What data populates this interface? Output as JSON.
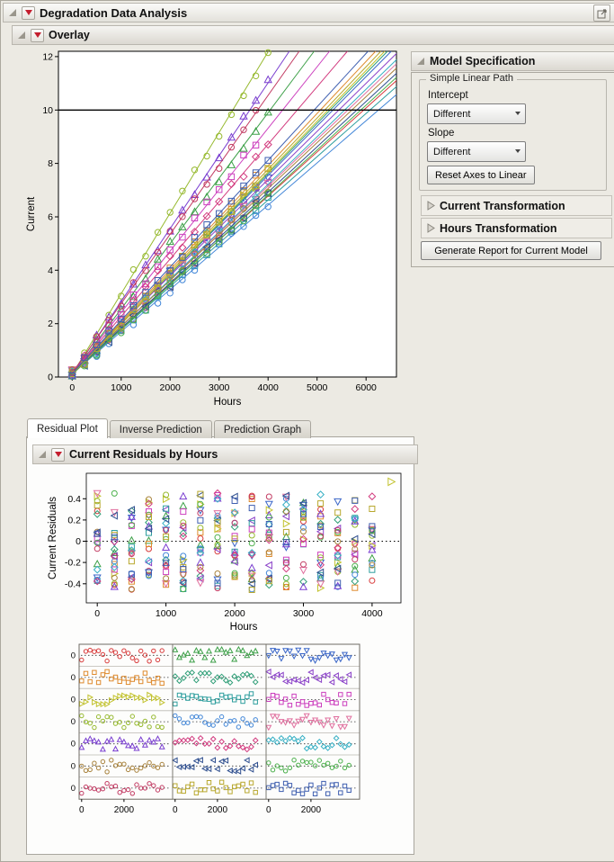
{
  "window": {
    "title": "Degradation Data Analysis"
  },
  "overlay": {
    "title": "Overlay"
  },
  "model_spec": {
    "title": "Model Specification",
    "group_label": "Simple Linear Path",
    "intercept_label": "Intercept",
    "intercept_value": "Different",
    "slope_label": "Slope",
    "slope_value": "Different",
    "reset_axes_button": "Reset Axes to Linear",
    "current_transformation_label": "Current Transformation",
    "hours_transformation_label": "Hours Transformation",
    "generate_report_button": "Generate Report for Current Model"
  },
  "tabs": [
    {
      "label": "Residual Plot",
      "active": true
    },
    {
      "label": "Inverse Prediction",
      "active": false
    },
    {
      "label": "Prediction Graph",
      "active": false
    }
  ],
  "residuals_section": {
    "title": "Current Residuals by Hours"
  },
  "colors": {
    "red_triangle": "#C41E2E",
    "reference_line": "#000000",
    "window_bg": "#ECEAE3"
  },
  "chart_data": [
    {
      "type": "line",
      "title": "Overlay plot of degradation paths",
      "xlabel": "Hours",
      "ylabel": "Current",
      "xlim": [
        -280,
        6620
      ],
      "ylim": [
        0,
        12.2
      ],
      "x_ticks": [
        0,
        1000,
        2000,
        3000,
        4000,
        5000,
        6000
      ],
      "y_ticks": [
        0,
        2,
        4,
        6,
        8,
        10,
        12
      ],
      "reference_line_y": 10,
      "marker_step_hours": 250,
      "series": [
        {
          "color": "#D83A3A",
          "marker": "circle",
          "slope_per_1000h": 1.65,
          "intercept": 0.18,
          "max_hours": 4000
        },
        {
          "color": "#3DA048",
          "marker": "triangle-up",
          "slope_per_1000h": 2.45,
          "intercept": 0.1,
          "max_hours": 4000
        },
        {
          "color": "#3A66C8",
          "marker": "triangle-down",
          "slope_per_1000h": 1.85,
          "intercept": 0.15,
          "max_hours": 4000
        },
        {
          "color": "#DE8A2E",
          "marker": "square",
          "slope_per_1000h": 1.95,
          "intercept": 0.12,
          "max_hours": 4000
        },
        {
          "color": "#2F9E77",
          "marker": "diamond",
          "slope_per_1000h": 1.88,
          "intercept": 0.1,
          "max_hours": 3750
        },
        {
          "color": "#8A41C8",
          "marker": "triangle-left",
          "slope_per_1000h": 1.8,
          "intercept": 0.2,
          "max_hours": 4000
        },
        {
          "color": "#C2C22E",
          "marker": "triangle-right",
          "slope_per_1000h": 1.9,
          "intercept": 0.08,
          "max_hours": 4000
        },
        {
          "color": "#2E9E9E",
          "marker": "square",
          "slope_per_1000h": 1.62,
          "intercept": 0.15,
          "max_hours": 4000
        },
        {
          "color": "#CC3FBE",
          "marker": "square",
          "slope_per_1000h": 2.3,
          "intercept": 0.12,
          "max_hours": 3750
        },
        {
          "color": "#96B92E",
          "marker": "circle",
          "slope_per_1000h": 3.02,
          "intercept": 0.1,
          "max_hours": 4000
        },
        {
          "color": "#4186D8",
          "marker": "circle",
          "slope_per_1000h": 1.58,
          "intercept": 0.12,
          "max_hours": 4000
        },
        {
          "color": "#E06F9E",
          "marker": "triangle-down",
          "slope_per_1000h": 1.75,
          "intercept": 0.15,
          "max_hours": 4000
        },
        {
          "color": "#7A3FD0",
          "marker": "triangle-up",
          "slope_per_1000h": 2.73,
          "intercept": 0.1,
          "max_hours": 4000
        },
        {
          "color": "#D23A7E",
          "marker": "diamond",
          "slope_per_1000h": 2.15,
          "intercept": 0.12,
          "max_hours": 4000
        },
        {
          "color": "#35AFC4",
          "marker": "diamond",
          "slope_per_1000h": 1.78,
          "intercept": 0.1,
          "max_hours": 3750
        },
        {
          "color": "#A8823C",
          "marker": "circle",
          "slope_per_1000h": 1.72,
          "intercept": 0.18,
          "max_hours": 4000
        },
        {
          "color": "#2F4F8F",
          "marker": "triangle-left",
          "slope_per_1000h": 1.7,
          "intercept": 0.12,
          "max_hours": 4000
        },
        {
          "color": "#4CB04C",
          "marker": "circle",
          "slope_per_1000h": 1.68,
          "intercept": 0.1,
          "max_hours": 4000
        },
        {
          "color": "#C23A62",
          "marker": "circle",
          "slope_per_1000h": 2.6,
          "intercept": 0.15,
          "max_hours": 3800
        },
        {
          "color": "#B8A82E",
          "marker": "square",
          "slope_per_1000h": 1.92,
          "intercept": 0.1,
          "max_hours": 4000
        },
        {
          "color": "#3F5FB0",
          "marker": "square",
          "slope_per_1000h": 2.0,
          "intercept": 0.12,
          "max_hours": 4000
        }
      ]
    },
    {
      "type": "scatter",
      "title": "Current Residuals by Hours",
      "xlabel": "Hours",
      "ylabel": "Current Residuals",
      "xlim": [
        -160,
        4420
      ],
      "ylim": [
        -0.58,
        0.64
      ],
      "x_ticks": [
        0,
        1000,
        2000,
        3000,
        4000
      ],
      "y_ticks": [
        0.4,
        0.2,
        0,
        -0.2,
        -0.4
      ],
      "zero_reference_line": 0,
      "marker_step_hours": 250,
      "residual_amplitude": 0.46,
      "outlier": {
        "series_index": 6,
        "hours": 4280,
        "residual": 0.56
      }
    },
    {
      "type": "scatter-panel",
      "title": "Residuals by unit panel grid",
      "rows": 7,
      "cols": 3,
      "xlim": [
        -120,
        4300
      ],
      "ylim": [
        -0.6,
        0.6
      ],
      "x_ticks": [
        0,
        2000
      ],
      "zero_label": "0",
      "marker_step_hours": 200,
      "max_hours": 3800,
      "residual_amplitude": 0.39
    }
  ]
}
